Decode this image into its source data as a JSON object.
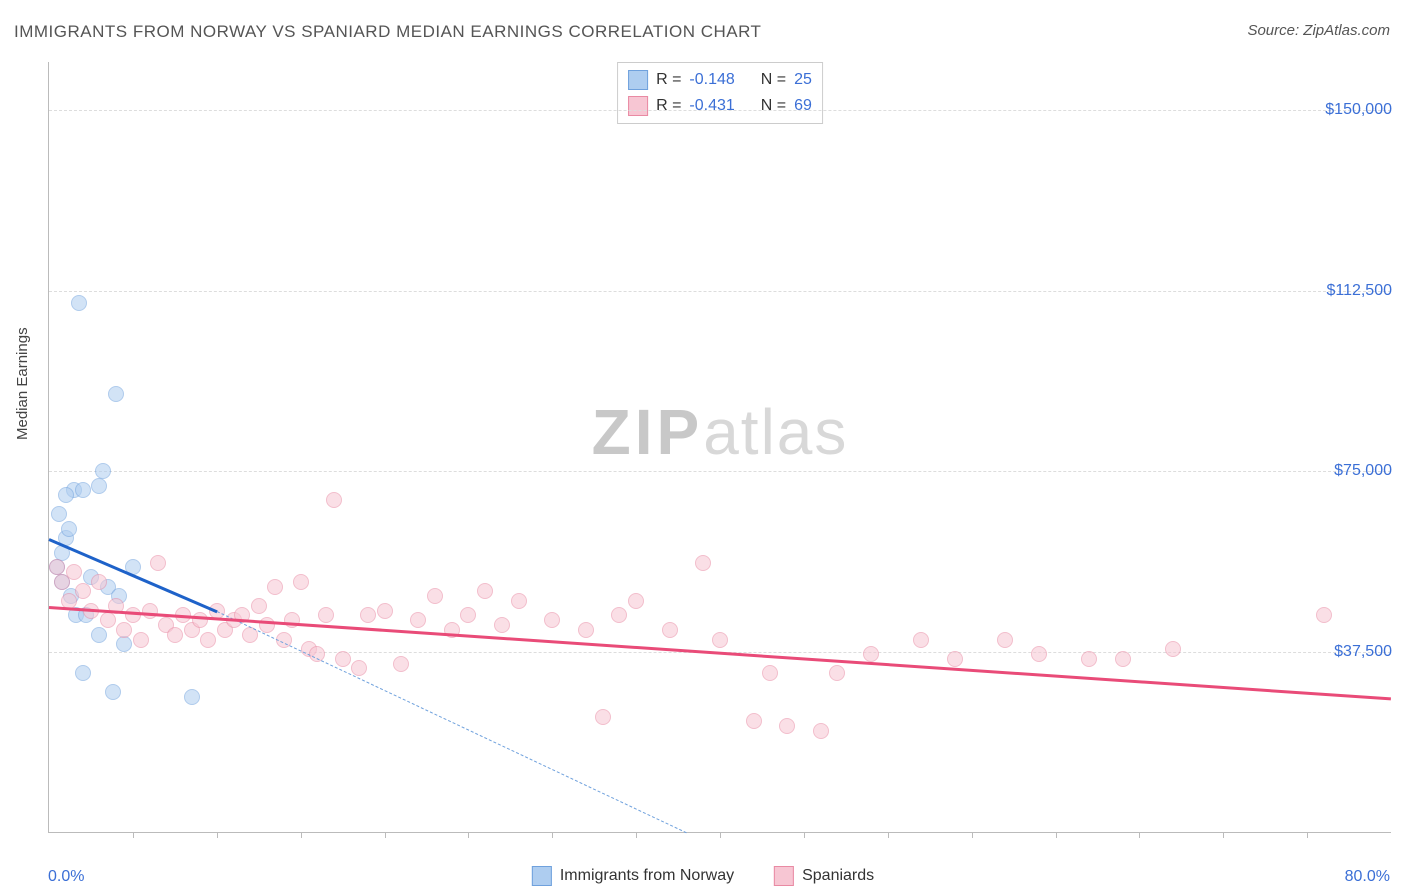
{
  "title": "IMMIGRANTS FROM NORWAY VS SPANIARD MEDIAN EARNINGS CORRELATION CHART",
  "source": "Source: ZipAtlas.com",
  "watermark_zip": "ZIP",
  "watermark_atlas": "atlas",
  "ylabel": "Median Earnings",
  "chart": {
    "type": "scatter",
    "background_color": "#ffffff",
    "grid_color": "#dddddd",
    "axis_color": "#bbbbbb",
    "tick_color": "#3b6fd6",
    "xlim": [
      0,
      80
    ],
    "ylim": [
      0,
      160000
    ],
    "yticks": [
      {
        "v": 37500,
        "label": "$37,500"
      },
      {
        "v": 75000,
        "label": "$75,000"
      },
      {
        "v": 112500,
        "label": "$112,500"
      },
      {
        "v": 150000,
        "label": "$150,000"
      }
    ],
    "xticks": {
      "left": "0.0%",
      "right": "80.0%"
    },
    "x_minor_ticks_pct": [
      5,
      10,
      15,
      20,
      25,
      30,
      35,
      40,
      45,
      50,
      55,
      60,
      65,
      70,
      75
    ],
    "marker_radius": 7,
    "marker_opacity": 0.55,
    "series": [
      {
        "name": "Immigrants from Norway",
        "key": "norway",
        "fill": "#aecdf0",
        "stroke": "#6fa1dd",
        "line_color": "#1e62c9",
        "R": "-0.148",
        "N": "25",
        "trend": {
          "x1": 0,
          "y1": 61000,
          "x2": 10,
          "y2": 46000,
          "dash_to_x": 38,
          "dash_to_y": 0
        },
        "points": [
          {
            "x": 1.0,
            "y": 61000
          },
          {
            "x": 0.8,
            "y": 58000
          },
          {
            "x": 1.2,
            "y": 63000
          },
          {
            "x": 0.5,
            "y": 55000
          },
          {
            "x": 1.5,
            "y": 71000
          },
          {
            "x": 1.0,
            "y": 70000
          },
          {
            "x": 2.0,
            "y": 71000
          },
          {
            "x": 3.0,
            "y": 72000
          },
          {
            "x": 3.2,
            "y": 75000
          },
          {
            "x": 1.8,
            "y": 110000
          },
          {
            "x": 4.0,
            "y": 91000
          },
          {
            "x": 0.8,
            "y": 52000
          },
          {
            "x": 1.3,
            "y": 49000
          },
          {
            "x": 2.5,
            "y": 53000
          },
          {
            "x": 3.5,
            "y": 51000
          },
          {
            "x": 4.2,
            "y": 49000
          },
          {
            "x": 1.6,
            "y": 45000
          },
          {
            "x": 2.2,
            "y": 45000
          },
          {
            "x": 3.0,
            "y": 41000
          },
          {
            "x": 4.5,
            "y": 39000
          },
          {
            "x": 2.0,
            "y": 33000
          },
          {
            "x": 3.8,
            "y": 29000
          },
          {
            "x": 8.5,
            "y": 28000
          },
          {
            "x": 5.0,
            "y": 55000
          },
          {
            "x": 0.6,
            "y": 66000
          }
        ]
      },
      {
        "name": "Spaniards",
        "key": "spaniards",
        "fill": "#f7c6d3",
        "stroke": "#e98aa3",
        "line_color": "#e94b78",
        "R": "-0.431",
        "N": "69",
        "trend": {
          "x1": 0,
          "y1": 47000,
          "x2": 80,
          "y2": 28000
        },
        "points": [
          {
            "x": 0.5,
            "y": 55000
          },
          {
            "x": 0.8,
            "y": 52000
          },
          {
            "x": 1.5,
            "y": 54000
          },
          {
            "x": 1.2,
            "y": 48000
          },
          {
            "x": 2.0,
            "y": 50000
          },
          {
            "x": 2.5,
            "y": 46000
          },
          {
            "x": 3.0,
            "y": 52000
          },
          {
            "x": 3.5,
            "y": 44000
          },
          {
            "x": 4.0,
            "y": 47000
          },
          {
            "x": 4.5,
            "y": 42000
          },
          {
            "x": 5.0,
            "y": 45000
          },
          {
            "x": 5.5,
            "y": 40000
          },
          {
            "x": 6.0,
            "y": 46000
          },
          {
            "x": 6.5,
            "y": 56000
          },
          {
            "x": 7.0,
            "y": 43000
          },
          {
            "x": 7.5,
            "y": 41000
          },
          {
            "x": 8.0,
            "y": 45000
          },
          {
            "x": 8.5,
            "y": 42000
          },
          {
            "x": 9.0,
            "y": 44000
          },
          {
            "x": 9.5,
            "y": 40000
          },
          {
            "x": 10.0,
            "y": 46000
          },
          {
            "x": 10.5,
            "y": 42000
          },
          {
            "x": 11.0,
            "y": 44000
          },
          {
            "x": 11.5,
            "y": 45000
          },
          {
            "x": 12.0,
            "y": 41000
          },
          {
            "x": 12.5,
            "y": 47000
          },
          {
            "x": 13.0,
            "y": 43000
          },
          {
            "x": 13.5,
            "y": 51000
          },
          {
            "x": 14.0,
            "y": 40000
          },
          {
            "x": 14.5,
            "y": 44000
          },
          {
            "x": 15.0,
            "y": 52000
          },
          {
            "x": 15.5,
            "y": 38000
          },
          {
            "x": 16.0,
            "y": 37000
          },
          {
            "x": 16.5,
            "y": 45000
          },
          {
            "x": 17.0,
            "y": 69000
          },
          {
            "x": 17.5,
            "y": 36000
          },
          {
            "x": 18.5,
            "y": 34000
          },
          {
            "x": 19.0,
            "y": 45000
          },
          {
            "x": 20.0,
            "y": 46000
          },
          {
            "x": 21.0,
            "y": 35000
          },
          {
            "x": 22.0,
            "y": 44000
          },
          {
            "x": 23.0,
            "y": 49000
          },
          {
            "x": 24.0,
            "y": 42000
          },
          {
            "x": 25.0,
            "y": 45000
          },
          {
            "x": 26.0,
            "y": 50000
          },
          {
            "x": 27.0,
            "y": 43000
          },
          {
            "x": 28.0,
            "y": 48000
          },
          {
            "x": 30.0,
            "y": 44000
          },
          {
            "x": 32.0,
            "y": 42000
          },
          {
            "x": 33.0,
            "y": 24000
          },
          {
            "x": 34.0,
            "y": 45000
          },
          {
            "x": 35.0,
            "y": 48000
          },
          {
            "x": 37.0,
            "y": 42000
          },
          {
            "x": 39.0,
            "y": 56000
          },
          {
            "x": 40.0,
            "y": 40000
          },
          {
            "x": 42.0,
            "y": 23000
          },
          {
            "x": 43.0,
            "y": 33000
          },
          {
            "x": 44.0,
            "y": 22000
          },
          {
            "x": 46.0,
            "y": 21000
          },
          {
            "x": 47.0,
            "y": 33000
          },
          {
            "x": 49.0,
            "y": 37000
          },
          {
            "x": 52.0,
            "y": 40000
          },
          {
            "x": 54.0,
            "y": 36000
          },
          {
            "x": 57.0,
            "y": 40000
          },
          {
            "x": 59.0,
            "y": 37000
          },
          {
            "x": 62.0,
            "y": 36000
          },
          {
            "x": 64.0,
            "y": 36000
          },
          {
            "x": 67.0,
            "y": 38000
          },
          {
            "x": 76.0,
            "y": 45000
          }
        ]
      }
    ]
  },
  "legend_top_labels": {
    "R": "R =",
    "N": "N ="
  },
  "legend_bottom": [
    {
      "key": "norway",
      "label": "Immigrants from Norway"
    },
    {
      "key": "spaniards",
      "label": "Spaniards"
    }
  ]
}
